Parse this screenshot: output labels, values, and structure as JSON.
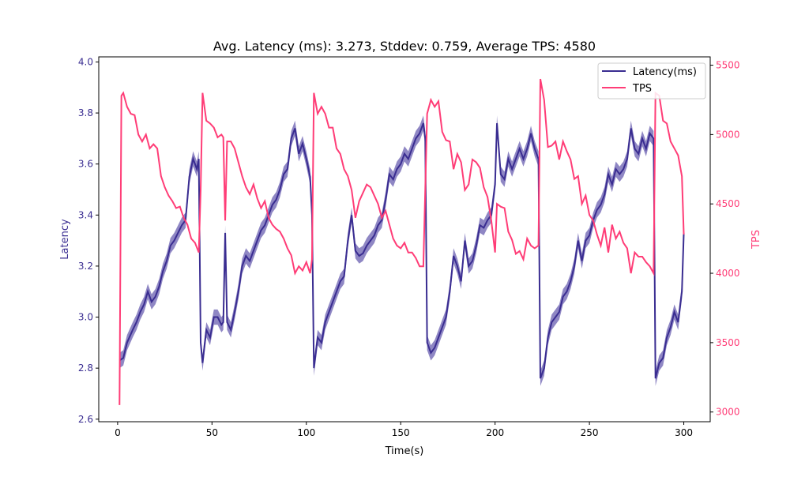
{
  "chart_data": {
    "type": "line",
    "title": "Avg. Latency (ms): 3.273, Stddev: 0.759, Average TPS: 4580",
    "xlabel": "Time(s)",
    "ylabel": "Latency",
    "ylabel_right": "TPS",
    "xlim": [
      -10,
      314
    ],
    "ylim": [
      2.59,
      4.02
    ],
    "ylim_right": [
      2930,
      5560
    ],
    "x_ticks": [
      0,
      50,
      100,
      150,
      200,
      250,
      300
    ],
    "y_ticks": [
      "2.6",
      "2.8",
      "3.0",
      "3.2",
      "3.4",
      "3.6",
      "3.8",
      "4.0"
    ],
    "y_ticks_right": [
      "3000",
      "3500",
      "4000",
      "4500",
      "5000",
      "5500"
    ],
    "legend": {
      "placement": "top-right",
      "entries": [
        "Latency(ms)",
        "TPS"
      ]
    },
    "colors": {
      "latency": "#3a2d91",
      "latency_band": "#6a5fb0",
      "tps": "#ff3d77",
      "axis": "#000000"
    },
    "latency_band_halfwidth": 0.03,
    "series": [
      {
        "name": "Latency(ms)",
        "axis": "left",
        "x": [
          1,
          3,
          5,
          8,
          10,
          12,
          14,
          16,
          18,
          20,
          22,
          24,
          26,
          28,
          30,
          32,
          34,
          36,
          38,
          40,
          42,
          43,
          44,
          45,
          47,
          49,
          51,
          53,
          55,
          56,
          57,
          58,
          60,
          62,
          64,
          66,
          68,
          70,
          72,
          74,
          76,
          78,
          80,
          82,
          84,
          86,
          88,
          90,
          92,
          94,
          96,
          98,
          100,
          102,
          103,
          104,
          106,
          108,
          110,
          112,
          114,
          116,
          118,
          120,
          122,
          124,
          126,
          128,
          130,
          132,
          134,
          136,
          138,
          140,
          142,
          144,
          146,
          148,
          150,
          152,
          154,
          156,
          158,
          160,
          162,
          163,
          164,
          166,
          168,
          170,
          172,
          174,
          176,
          178,
          180,
          182,
          184,
          186,
          188,
          190,
          192,
          194,
          196,
          198,
          200,
          201,
          203,
          205,
          207,
          209,
          211,
          213,
          215,
          217,
          219,
          221,
          223,
          224,
          226,
          228,
          230,
          232,
          234,
          236,
          238,
          240,
          242,
          244,
          246,
          248,
          250,
          252,
          254,
          256,
          258,
          260,
          262,
          264,
          266,
          268,
          270,
          272,
          274,
          276,
          278,
          280,
          282,
          284,
          285,
          287,
          289,
          291,
          293,
          295,
          297,
          299,
          300
        ],
        "y": [
          2.83,
          2.84,
          2.9,
          2.95,
          2.98,
          3.02,
          3.05,
          3.1,
          3.06,
          3.08,
          3.12,
          3.18,
          3.22,
          3.28,
          3.3,
          3.33,
          3.36,
          3.38,
          3.55,
          3.62,
          3.58,
          3.62,
          2.9,
          2.82,
          2.95,
          2.92,
          3.0,
          3.0,
          2.97,
          2.98,
          3.33,
          2.98,
          2.95,
          3.02,
          3.1,
          3.2,
          3.24,
          3.22,
          3.26,
          3.3,
          3.34,
          3.36,
          3.4,
          3.44,
          3.46,
          3.5,
          3.56,
          3.58,
          3.7,
          3.74,
          3.64,
          3.68,
          3.62,
          3.55,
          3.4,
          2.8,
          2.92,
          2.9,
          2.98,
          3.02,
          3.06,
          3.1,
          3.14,
          3.16,
          3.3,
          3.4,
          3.26,
          3.24,
          3.25,
          3.28,
          3.3,
          3.32,
          3.36,
          3.38,
          3.46,
          3.56,
          3.54,
          3.58,
          3.6,
          3.64,
          3.62,
          3.66,
          3.7,
          3.72,
          3.76,
          3.7,
          2.9,
          2.86,
          2.88,
          2.92,
          2.96,
          3.0,
          3.1,
          3.24,
          3.2,
          3.14,
          3.3,
          3.2,
          3.22,
          3.28,
          3.36,
          3.35,
          3.38,
          3.4,
          3.52,
          3.76,
          3.56,
          3.54,
          3.62,
          3.58,
          3.62,
          3.66,
          3.62,
          3.66,
          3.72,
          3.66,
          3.62,
          2.76,
          2.8,
          2.92,
          2.98,
          3.0,
          3.02,
          3.08,
          3.1,
          3.14,
          3.2,
          3.3,
          3.22,
          3.3,
          3.32,
          3.38,
          3.42,
          3.44,
          3.48,
          3.56,
          3.52,
          3.58,
          3.56,
          3.58,
          3.62,
          3.74,
          3.66,
          3.64,
          3.7,
          3.66,
          3.72,
          3.7,
          2.76,
          2.82,
          2.84,
          2.92,
          2.96,
          3.02,
          2.98,
          3.1,
          3.33
        ]
      },
      {
        "name": "TPS",
        "axis": "right",
        "x": [
          1,
          2,
          3,
          5,
          7,
          9,
          11,
          13,
          15,
          17,
          19,
          21,
          23,
          25,
          27,
          29,
          31,
          33,
          35,
          37,
          39,
          41,
          43,
          44,
          45,
          47,
          49,
          51,
          53,
          55,
          56,
          57,
          58,
          60,
          62,
          64,
          66,
          68,
          70,
          72,
          74,
          76,
          78,
          80,
          82,
          84,
          86,
          88,
          90,
          92,
          94,
          96,
          98,
          100,
          102,
          103,
          104,
          106,
          108,
          110,
          112,
          114,
          116,
          118,
          120,
          122,
          124,
          126,
          128,
          130,
          132,
          134,
          136,
          138,
          140,
          142,
          144,
          146,
          148,
          150,
          152,
          154,
          156,
          158,
          160,
          162,
          164,
          166,
          168,
          170,
          172,
          174,
          176,
          178,
          180,
          182,
          184,
          186,
          188,
          190,
          192,
          194,
          196,
          198,
          200,
          201,
          203,
          205,
          207,
          209,
          211,
          213,
          215,
          217,
          219,
          221,
          223,
          224,
          226,
          228,
          230,
          232,
          234,
          236,
          238,
          240,
          242,
          244,
          246,
          248,
          250,
          252,
          254,
          256,
          258,
          260,
          262,
          264,
          266,
          268,
          270,
          272,
          274,
          276,
          278,
          280,
          282,
          284,
          285,
          287,
          289,
          291,
          293,
          295,
          297,
          299,
          300
        ],
        "y": [
          3050,
          5280,
          5300,
          5200,
          5150,
          5140,
          5000,
          4950,
          5000,
          4900,
          4930,
          4900,
          4700,
          4620,
          4560,
          4520,
          4470,
          4480,
          4400,
          4350,
          4250,
          4220,
          4150,
          4600,
          5300,
          5100,
          5080,
          5050,
          4980,
          5000,
          4980,
          4380,
          4950,
          4950,
          4900,
          4800,
          4700,
          4620,
          4570,
          4640,
          4540,
          4470,
          4520,
          4400,
          4350,
          4320,
          4300,
          4250,
          4180,
          4130,
          4000,
          4050,
          4020,
          4080,
          4000,
          4100,
          5300,
          5150,
          5200,
          5150,
          5050,
          5050,
          4900,
          4860,
          4750,
          4700,
          4600,
          4400,
          4520,
          4580,
          4640,
          4620,
          4560,
          4500,
          4400,
          4450,
          4350,
          4250,
          4200,
          4180,
          4220,
          4150,
          4150,
          4110,
          4050,
          4050,
          5150,
          5250,
          5200,
          5240,
          5020,
          4960,
          4950,
          4750,
          4860,
          4800,
          4600,
          4640,
          4820,
          4800,
          4760,
          4620,
          4550,
          4380,
          4150,
          4500,
          4480,
          4470,
          4300,
          4240,
          4140,
          4160,
          4100,
          4250,
          4200,
          4180,
          4200,
          5400,
          5250,
          4910,
          4920,
          4950,
          4820,
          4950,
          4880,
          4820,
          4680,
          4700,
          4500,
          4560,
          4420,
          4380,
          4280,
          4200,
          4330,
          4150,
          4350,
          4250,
          4300,
          4220,
          4180,
          4000,
          4150,
          4120,
          4120,
          4080,
          4050,
          4000,
          5300,
          5280,
          5100,
          5080,
          4950,
          4900,
          4850,
          4700,
          4280
        ]
      }
    ]
  }
}
